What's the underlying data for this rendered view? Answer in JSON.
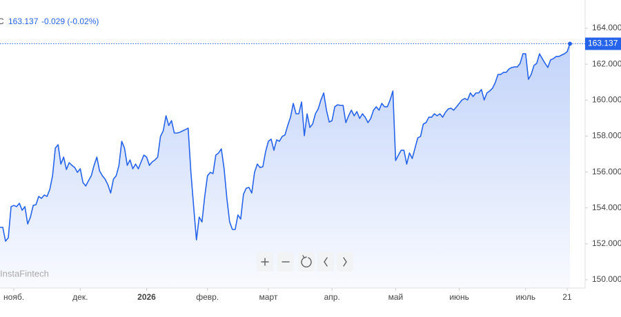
{
  "header": {
    "label": "С",
    "change": "-0.029 (-0.02%)"
  },
  "watermark": "InstaFintech",
  "chart_data": {
    "type": "area",
    "categories": [
      null,
      null,
      null,
      null,
      null,
      "нояб.",
      null,
      null,
      null,
      null,
      null,
      null,
      null,
      null,
      null,
      null,
      null,
      null,
      null,
      null,
      null,
      null,
      null,
      null,
      null,
      null,
      null,
      null,
      null,
      "дек.",
      null,
      null,
      null,
      null,
      null,
      null,
      null,
      null,
      null,
      null,
      null,
      null,
      null,
      null,
      null,
      null,
      null,
      null,
      null,
      null,
      null,
      null,
      null,
      "2026",
      null,
      null,
      null,
      null,
      null,
      null,
      null,
      null,
      null,
      null,
      null,
      null,
      null,
      null,
      null,
      null,
      null,
      null,
      null,
      null,
      null,
      "февр.",
      null,
      null,
      null,
      null,
      null,
      null,
      null,
      null,
      null,
      null,
      null,
      null,
      null,
      null,
      null,
      null,
      null,
      null,
      null,
      null,
      null,
      "март",
      null,
      null,
      null,
      null,
      null,
      null,
      null,
      null,
      null,
      null,
      null,
      null,
      null,
      null,
      null,
      null,
      null,
      null,
      null,
      null,
      null,
      null,
      "апр.",
      null,
      null,
      null,
      null,
      null,
      null,
      null,
      null,
      null,
      null,
      null,
      null,
      null,
      null,
      null,
      null,
      null,
      null,
      null,
      null,
      null,
      null,
      "май",
      null,
      null,
      null,
      null,
      null,
      null,
      null,
      null,
      null,
      null,
      null,
      null,
      null,
      null,
      null,
      null,
      null,
      null,
      null,
      null,
      null,
      null,
      "июнь",
      null,
      null,
      null,
      null,
      null,
      null,
      null,
      null,
      null,
      null,
      null,
      null,
      null,
      null,
      null,
      null,
      null,
      null,
      null,
      null,
      null,
      null,
      null,
      "июль",
      null,
      null,
      null,
      null,
      null,
      null,
      null,
      null,
      null,
      null,
      null,
      null,
      null,
      null,
      "21",
      null
    ],
    "series": [
      {
        "color": "#2563eb",
        "values": [
          152.92,
          152.92,
          152.15,
          152.34,
          154.07,
          154.14,
          154.07,
          154.26,
          153.87,
          154.07,
          153.11,
          153.49,
          154.14,
          154.18,
          154.64,
          154.53,
          154.72,
          154.64,
          155.03,
          155.79,
          157.33,
          157.52,
          156.44,
          156.83,
          156.14,
          156.52,
          156.37,
          156.25,
          155.98,
          156.18,
          155.41,
          155.22,
          155.52,
          155.79,
          156.37,
          156.83,
          156.06,
          155.79,
          155.6,
          155.29,
          154.83,
          155.6,
          155.79,
          156.37,
          157.71,
          157.33,
          156.37,
          156.67,
          156.18,
          156.44,
          156.18,
          156.56,
          156.94,
          156.83,
          156.37,
          156.56,
          156.67,
          156.83,
          157.98,
          158.29,
          159.13,
          158.59,
          158.86,
          158.17,
          158.17,
          158.21,
          158.29,
          158.36,
          158.44,
          155.98,
          154.07,
          152.22,
          153.49,
          153.22,
          154.64,
          155.79,
          155.98,
          155.91,
          156.94,
          157.06,
          157.29,
          156.18,
          154.53,
          153.22,
          152.8,
          152.8,
          153.61,
          153.38,
          154.76,
          155.1,
          155.14,
          154.83,
          155.98,
          156.44,
          156.25,
          156.29,
          157.13,
          157.71,
          157.83,
          157.21,
          157.79,
          157.71,
          157.98,
          158.06,
          158.59,
          159.05,
          159.82,
          159.24,
          159.24,
          159.9,
          158.02,
          159.24,
          158.48,
          158.67,
          159.24,
          159.51,
          160.01,
          160.4,
          159.44,
          158.78,
          158.86,
          159.63,
          159.74,
          159.71,
          159.71,
          158.75,
          159.13,
          159.44,
          159.13,
          159.36,
          158.98,
          159.24,
          159.05,
          158.75,
          158.98,
          159.44,
          159.63,
          159.44,
          159.82,
          159.63,
          159.63,
          160.01,
          160.51,
          156.64,
          156.94,
          157.21,
          157.21,
          156.44,
          157.06,
          156.75,
          157.33,
          157.9,
          157.98,
          158.67,
          158.75,
          159.05,
          159.05,
          159.24,
          159.13,
          159.24,
          159.05,
          159.32,
          159.51,
          159.55,
          159.44,
          159.63,
          159.82,
          160.01,
          160.09,
          160.01,
          160.4,
          160.2,
          160.4,
          160.4,
          160.59,
          160.01,
          160.4,
          160.51,
          160.66,
          160.97,
          161.43,
          161.43,
          161.55,
          161.55,
          161.74,
          161.82,
          161.85,
          161.85,
          162.05,
          162.58,
          162.58,
          161.16,
          161.43,
          161.93,
          162.05,
          162.58,
          162.31,
          162.05,
          161.82,
          162.24,
          162.31,
          162.43,
          162.43,
          162.51,
          162.58,
          162.7,
          163.137
        ]
      }
    ],
    "ylim": [
      149.54,
      165.19
    ],
    "yticks": [
      {
        "value": 150,
        "label": "150.000"
      },
      {
        "value": 152,
        "label": "152.000"
      },
      {
        "value": 154,
        "label": "154.000"
      },
      {
        "value": 156,
        "label": "156.000"
      },
      {
        "value": 158,
        "label": "158.000"
      },
      {
        "value": 160,
        "label": "160.000"
      },
      {
        "value": 162,
        "label": "162.000"
      },
      {
        "value": 164,
        "label": "164.000"
      }
    ],
    "grid": false
  }
}
